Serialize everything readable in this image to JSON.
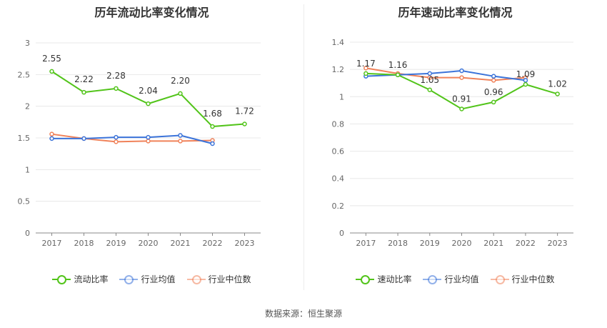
{
  "chart_data": [
    {
      "type": "line",
      "title": "历年流动比率变化情况",
      "categories": [
        "2017",
        "2018",
        "2019",
        "2020",
        "2021",
        "2022",
        "2023"
      ],
      "ylim": [
        0,
        3
      ],
      "yticks": [
        "0",
        "0.5",
        "1",
        "1.5",
        "2",
        "2.5",
        "3"
      ],
      "grid": true,
      "legend_position": "bottom",
      "series": [
        {
          "name": "流动比率",
          "color": "#52c41a",
          "values": [
            2.55,
            2.22,
            2.28,
            2.04,
            2.2,
            1.68,
            1.72
          ],
          "labels": [
            "2.55",
            "2.22",
            "2.28",
            "2.04",
            "2.20",
            "1.68",
            "1.72"
          ]
        },
        {
          "name": "行业均值",
          "color": "#3b73d9",
          "values": [
            1.49,
            1.49,
            1.51,
            1.51,
            1.54,
            1.41,
            null
          ]
        },
        {
          "name": "行业中位数",
          "color": "#f0825a",
          "values": [
            1.56,
            1.49,
            1.44,
            1.45,
            1.45,
            1.46,
            null
          ]
        }
      ]
    },
    {
      "type": "line",
      "title": "历年速动比率变化情况",
      "categories": [
        "2017",
        "2018",
        "2019",
        "2020",
        "2021",
        "2022",
        "2023"
      ],
      "ylim": [
        0,
        1.4
      ],
      "yticks": [
        "0",
        "0.2",
        "0.4",
        "0.6",
        "0.8",
        "1",
        "1.2",
        "1.4"
      ],
      "grid": true,
      "legend_position": "bottom",
      "series": [
        {
          "name": "速动比率",
          "color": "#52c41a",
          "values": [
            1.17,
            1.16,
            1.05,
            0.91,
            0.96,
            1.09,
            1.02
          ],
          "labels": [
            "1.17",
            "1.16",
            "1.05",
            "0.91",
            "0.96",
            "1.09",
            "1.02"
          ]
        },
        {
          "name": "行业均值",
          "color": "#3b73d9",
          "values": [
            1.15,
            1.16,
            1.17,
            1.19,
            1.15,
            1.12,
            null
          ]
        },
        {
          "name": "行业中位数",
          "color": "#f0825a",
          "values": [
            1.21,
            1.17,
            1.14,
            1.14,
            1.12,
            1.14,
            null
          ]
        }
      ]
    }
  ],
  "footer": {
    "source": "数据来源：恒生聚源"
  }
}
